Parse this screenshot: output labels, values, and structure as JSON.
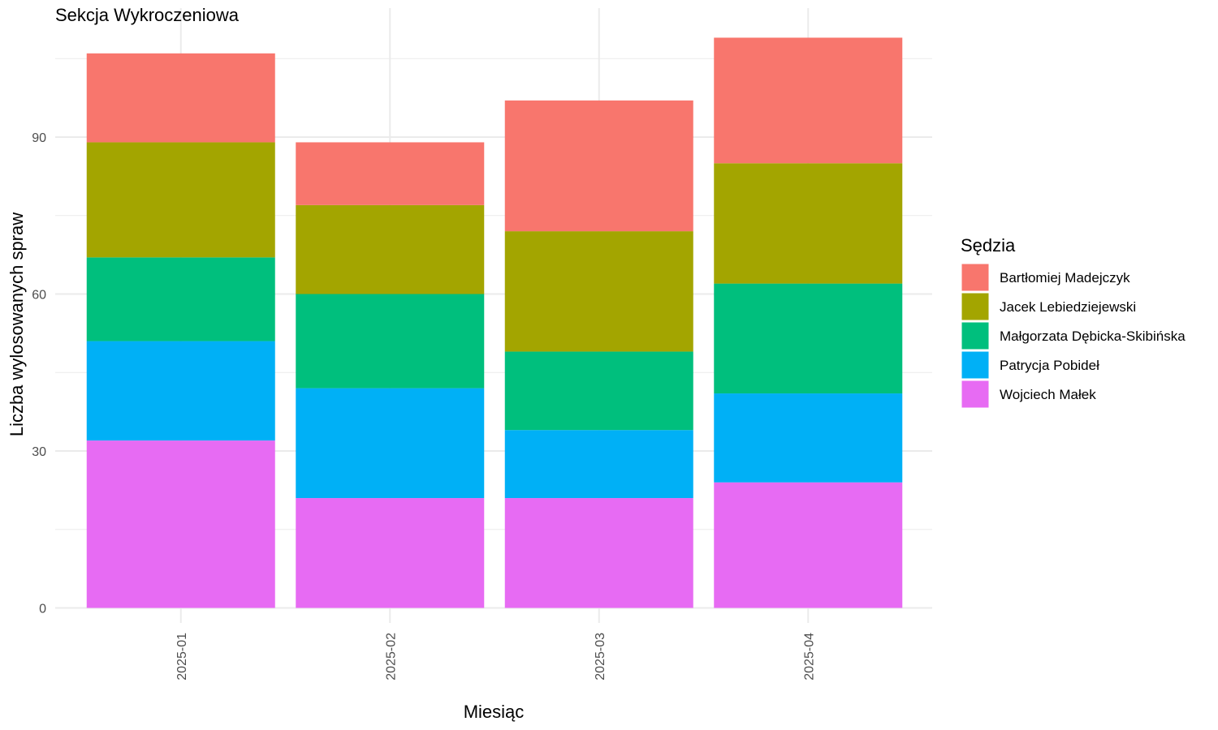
{
  "chart_data": {
    "type": "bar",
    "stacked": true,
    "title": "Sekcja Wykroczeniowa",
    "xlabel": "Miesiąc",
    "ylabel": "Liczba wylosowanych spraw",
    "categories": [
      "2025-01",
      "2025-02",
      "2025-03",
      "2025-04"
    ],
    "ylim": [
      0,
      114
    ],
    "yticks": [
      0,
      30,
      60,
      90
    ],
    "grid": true,
    "legend": {
      "title": "Sędzia",
      "placement": "right"
    },
    "series": [
      {
        "name": "Wojciech Małek",
        "color": "#E76BF3",
        "values": [
          32,
          21,
          21,
          24
        ]
      },
      {
        "name": "Patrycja Pobideł",
        "color": "#00B0F6",
        "values": [
          19,
          21,
          13,
          17
        ]
      },
      {
        "name": "Małgorzata Dębicka-Skibińska",
        "color": "#00BF7D",
        "values": [
          16,
          18,
          15,
          21
        ]
      },
      {
        "name": "Jacek Lebiedziejewski",
        "color": "#A3A500",
        "values": [
          22,
          17,
          23,
          23
        ]
      },
      {
        "name": "Bartłomiej Madejczyk",
        "color": "#F8766D",
        "values": [
          17,
          12,
          25,
          24
        ]
      }
    ]
  }
}
